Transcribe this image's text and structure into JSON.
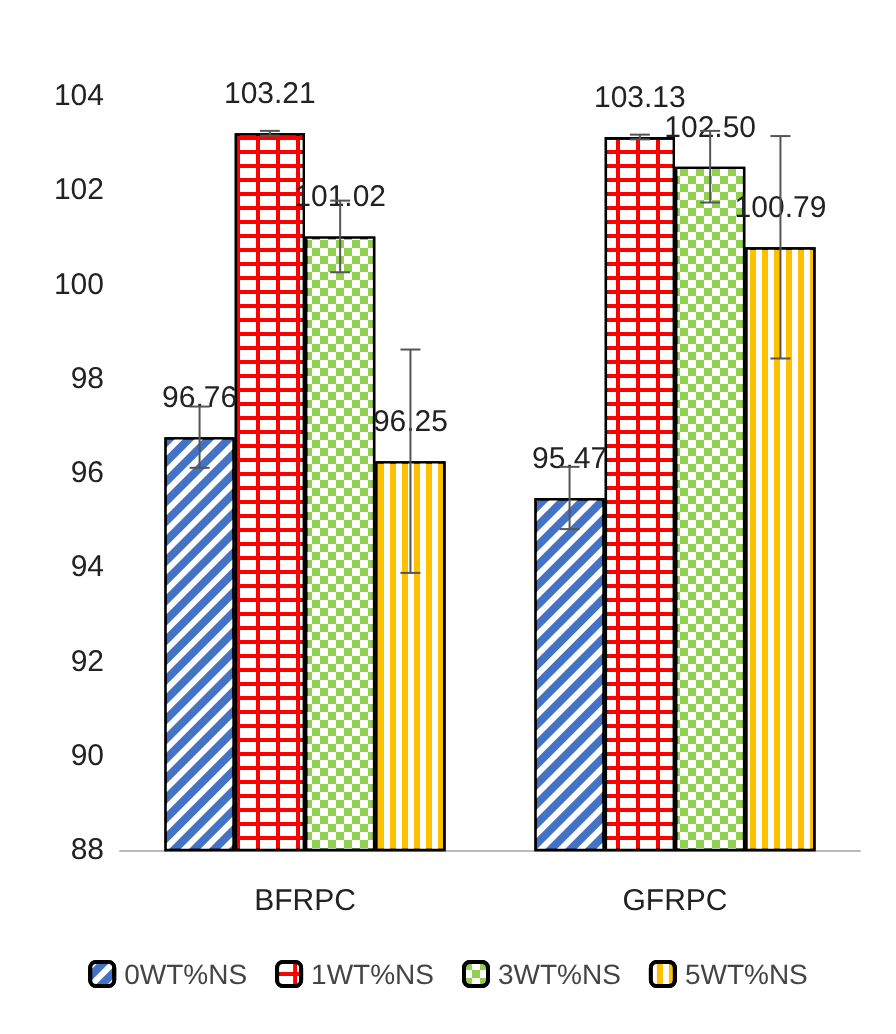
{
  "chart_data": {
    "type": "bar",
    "categories": [
      "BFRPC",
      "GFRPC"
    ],
    "series": [
      {
        "name": "0WT%NS",
        "color": "#4472c4",
        "values": [
          96.76,
          95.47
        ],
        "errors": [
          0.65,
          0.66
        ]
      },
      {
        "name": "1WT%NS",
        "color": "#ff0000",
        "values": [
          103.21,
          103.13
        ],
        "errors": [
          0.05,
          0.05
        ]
      },
      {
        "name": "3WT%NS",
        "color": "#92d050",
        "values": [
          101.02,
          102.5
        ],
        "errors": [
          0.76,
          0.76
        ],
        "value_labels": [
          "101.02",
          "102.50"
        ]
      },
      {
        "name": "5WT%NS",
        "color": "#ffc000",
        "values": [
          96.25,
          100.79
        ],
        "errors": [
          2.37,
          2.36
        ]
      }
    ],
    "ylim": [
      88,
      104
    ],
    "yticks": [
      88,
      90,
      92,
      94,
      96,
      98,
      100,
      102,
      104
    ],
    "data_labels": true,
    "grid": false,
    "legend": "bottom"
  }
}
